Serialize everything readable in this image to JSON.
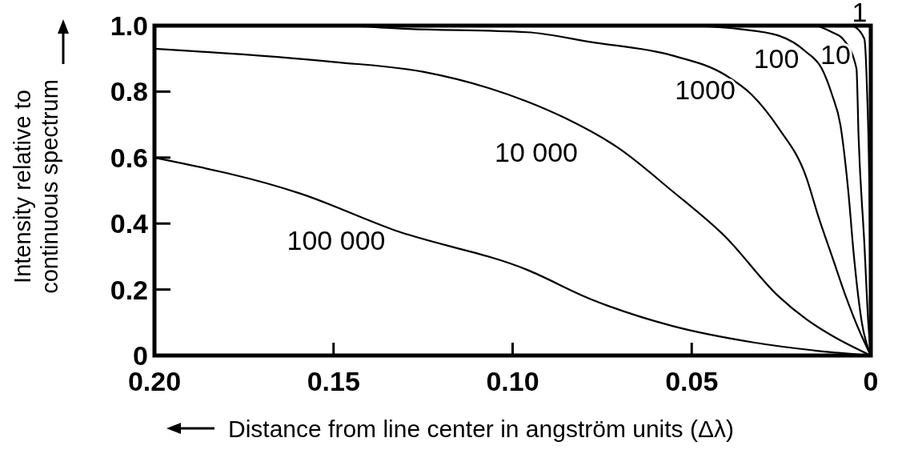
{
  "chart_data": {
    "type": "line",
    "xlabel": "Distance from line center in angström units (Δλ)",
    "ylabel": "Intensity relative to continuous spectrum",
    "xlim": [
      0.2,
      0
    ],
    "ylim": [
      0,
      1
    ],
    "xticks": [
      {
        "value": 0.2,
        "label": "0.20"
      },
      {
        "value": 0.15,
        "label": "0.15"
      },
      {
        "value": 0.1,
        "label": "0.10"
      },
      {
        "value": 0.05,
        "label": "0.05"
      },
      0
    ],
    "yticks": [
      0,
      {
        "value": 0.2,
        "label": "0.2"
      },
      {
        "value": 0.4,
        "label": "0.4"
      },
      {
        "value": 0.6,
        "label": "0.6"
      },
      {
        "value": 0.8,
        "label": "0.8"
      },
      {
        "value": 1,
        "label": "1.0"
      }
    ],
    "grid": false,
    "marker": "none",
    "line_style": "solid",
    "series": [
      {
        "name": "1",
        "color": "#000000",
        "x": [
          0.005,
          0.0018,
          0.0011,
          0.0003,
          0
        ],
        "values": [
          1,
          0.96,
          0.82,
          0.42,
          0
        ]
      },
      {
        "name": "10",
        "color": "#000000",
        "x": [
          0.015,
          0.0108,
          0.0078,
          0.004,
          0.0034,
          0.0018,
          0.0007,
          0
        ],
        "values": [
          1,
          0.98,
          0.96,
          0.87,
          0.66,
          0.34,
          0.1,
          0
        ]
      },
      {
        "name": "100",
        "color": "#000000",
        "x": [
          0.05,
          0.037,
          0.0258,
          0.018,
          0.0137,
          0.0108,
          0.0085,
          0.0063,
          0.0047,
          0.0025,
          0
        ],
        "values": [
          1,
          0.99,
          0.97,
          0.92,
          0.87,
          0.79,
          0.7,
          0.5,
          0.3,
          0.1,
          0
        ]
      },
      {
        "name": "1000",
        "color": "#000000",
        "x": [
          0.2,
          0.15,
          0.129,
          0.096,
          0.078,
          0.0556,
          0.0406,
          0.0332,
          0.0258,
          0.018,
          0.0146,
          0.0108,
          0.007,
          0.0034,
          0
        ],
        "values": [
          1,
          1,
          0.99,
          0.98,
          0.95,
          0.91,
          0.85,
          0.79,
          0.69,
          0.54,
          0.42,
          0.3,
          0.18,
          0.08,
          0
        ]
      },
      {
        "name": "10 000",
        "color": "#000000",
        "x": [
          0.2,
          0.15,
          0.125,
          0.1065,
          0.096,
          0.0854,
          0.0706,
          0.0556,
          0.0406,
          0.0258,
          0.018,
          0.0108,
          0
        ],
        "values": [
          0.93,
          0.89,
          0.86,
          0.81,
          0.77,
          0.72,
          0.63,
          0.5,
          0.36,
          0.18,
          0.11,
          0.06,
          0
        ]
      },
      {
        "name": "100 000",
        "color": "#000000",
        "x": [
          0.2,
          0.159,
          0.133,
          0.096,
          0.078,
          0.0556,
          0.033,
          0.011,
          0
        ],
        "values": [
          0.6,
          0.49,
          0.38,
          0.26,
          0.17,
          0.09,
          0.04,
          0.01,
          0
        ]
      }
    ]
  }
}
